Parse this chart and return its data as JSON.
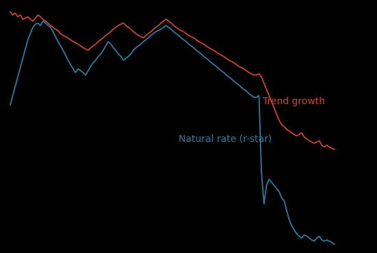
{
  "background_color": "#000000",
  "trend_color": "#cc4433",
  "rstar_color": "#2e7d9e",
  "trend_label": "Trend growth",
  "rstar_label": "Natural rate (r-star)",
  "trend_label_fontsize": 10,
  "rstar_label_fontsize": 10,
  "trend_data": [
    3.9,
    3.85,
    3.88,
    3.82,
    3.85,
    3.78,
    3.8,
    3.82,
    3.78,
    3.75,
    3.8,
    3.85,
    3.82,
    3.78,
    3.75,
    3.72,
    3.68,
    3.65,
    3.62,
    3.6,
    3.55,
    3.52,
    3.5,
    3.48,
    3.45,
    3.42,
    3.4,
    3.38,
    3.35,
    3.32,
    3.3,
    3.28,
    3.32,
    3.35,
    3.38,
    3.42,
    3.45,
    3.48,
    3.52,
    3.55,
    3.58,
    3.62,
    3.65,
    3.68,
    3.7,
    3.72,
    3.68,
    3.65,
    3.62,
    3.58,
    3.55,
    3.52,
    3.5,
    3.48,
    3.52,
    3.55,
    3.58,
    3.62,
    3.65,
    3.68,
    3.72,
    3.75,
    3.78,
    3.75,
    3.72,
    3.68,
    3.65,
    3.62,
    3.6,
    3.58,
    3.55,
    3.52,
    3.5,
    3.48,
    3.45,
    3.42,
    3.4,
    3.38,
    3.35,
    3.32,
    3.3,
    3.28,
    3.25,
    3.22,
    3.2,
    3.18,
    3.15,
    3.12,
    3.1,
    3.08,
    3.05,
    3.02,
    3.0,
    2.98,
    2.95,
    2.92,
    2.9,
    2.88,
    2.88,
    2.9,
    2.85,
    2.75,
    2.65,
    2.55,
    2.45,
    2.35,
    2.25,
    2.15,
    2.08,
    2.05,
    2.0,
    1.98,
    1.95,
    1.92,
    1.9,
    1.92,
    1.95,
    1.88,
    1.85,
    1.82,
    1.8,
    1.78,
    1.8,
    1.82,
    1.75,
    1.72,
    1.75,
    1.72,
    1.7,
    1.68
  ],
  "rstar_data": [
    2.4,
    2.55,
    2.7,
    2.85,
    3.0,
    3.15,
    3.3,
    3.45,
    3.55,
    3.65,
    3.7,
    3.72,
    3.68,
    3.75,
    3.72,
    3.68,
    3.65,
    3.58,
    3.5,
    3.42,
    3.35,
    3.28,
    3.2,
    3.12,
    3.05,
    2.98,
    2.92,
    2.98,
    2.95,
    2.92,
    2.88,
    2.95,
    3.02,
    3.08,
    3.12,
    3.18,
    3.22,
    3.28,
    3.35,
    3.42,
    3.38,
    3.32,
    3.28,
    3.22,
    3.18,
    3.12,
    3.15,
    3.18,
    3.22,
    3.28,
    3.32,
    3.35,
    3.38,
    3.42,
    3.45,
    3.48,
    3.52,
    3.55,
    3.58,
    3.6,
    3.62,
    3.65,
    3.68,
    3.65,
    3.62,
    3.58,
    3.55,
    3.52,
    3.48,
    3.45,
    3.42,
    3.38,
    3.35,
    3.32,
    3.28,
    3.25,
    3.22,
    3.18,
    3.15,
    3.12,
    3.08,
    3.05,
    3.02,
    2.98,
    2.95,
    2.92,
    2.88,
    2.85,
    2.82,
    2.78,
    2.75,
    2.72,
    2.68,
    2.65,
    2.62,
    2.58,
    2.55,
    2.52,
    2.52,
    2.55,
    1.3,
    0.8,
    1.1,
    1.2,
    1.15,
    1.1,
    1.05,
    1.0,
    0.9,
    0.85,
    0.7,
    0.55,
    0.45,
    0.38,
    0.32,
    0.28,
    0.25,
    0.3,
    0.28,
    0.25,
    0.22,
    0.2,
    0.25,
    0.28,
    0.22,
    0.2,
    0.22,
    0.2,
    0.18,
    0.15
  ]
}
